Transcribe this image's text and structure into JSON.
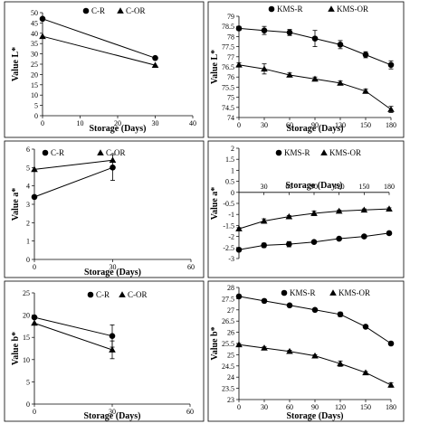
{
  "chart_data": [
    {
      "type": "line",
      "panel": "top-left",
      "xlabel": "Storage (Days)",
      "ylabel": "Value L*",
      "xlim": [
        0,
        40
      ],
      "ylim": [
        0,
        50
      ],
      "xticks": [
        0,
        10,
        20,
        30,
        40
      ],
      "yticks": [
        0,
        5,
        10,
        15,
        20,
        25,
        30,
        35,
        40,
        45,
        50
      ],
      "x_axis_at_bottom": true,
      "legend_placement": "top",
      "series": [
        {
          "name": "C-R",
          "marker": "circle",
          "x": [
            0,
            30
          ],
          "y": [
            47,
            28
          ],
          "err": [
            0,
            0
          ]
        },
        {
          "name": "C-OR",
          "marker": "triangle",
          "x": [
            0,
            30
          ],
          "y": [
            38.5,
            24.5
          ],
          "err": [
            0,
            0
          ]
        }
      ]
    },
    {
      "type": "line",
      "panel": "top-right",
      "xlabel": "Storage (Days)",
      "ylabel": "Value L*",
      "xlim": [
        0,
        180
      ],
      "ylim": [
        74,
        79
      ],
      "xticks": [
        0,
        30,
        60,
        90,
        120,
        150,
        180
      ],
      "yticks": [
        74,
        74.5,
        75,
        75.5,
        76,
        76.5,
        77,
        77.5,
        78,
        78.5,
        79
      ],
      "x_axis_at_bottom": true,
      "legend_placement": "top",
      "series": [
        {
          "name": "KMS-R",
          "marker": "circle",
          "x": [
            0,
            30,
            60,
            90,
            120,
            150,
            180
          ],
          "y": [
            78.4,
            78.3,
            78.2,
            77.9,
            77.6,
            77.1,
            76.6
          ],
          "err": [
            0.1,
            0.2,
            0.15,
            0.4,
            0.2,
            0.15,
            0.2
          ]
        },
        {
          "name": "KMS-OR",
          "marker": "triangle",
          "x": [
            0,
            30,
            60,
            90,
            120,
            150,
            180
          ],
          "y": [
            76.6,
            76.4,
            76.1,
            75.9,
            75.7,
            75.3,
            74.4
          ],
          "err": [
            0.1,
            0.25,
            0.1,
            0.1,
            0.1,
            0.1,
            0.15
          ]
        }
      ]
    },
    {
      "type": "line",
      "panel": "middle-left",
      "xlabel": "Storage (Days)",
      "ylabel": "Value a*",
      "xlim": [
        0,
        60
      ],
      "ylim": [
        0,
        6
      ],
      "xticks": [
        0,
        30,
        60
      ],
      "yticks": [
        0,
        1,
        2,
        3,
        4,
        5,
        6
      ],
      "x_axis_at_bottom": true,
      "legend_placement": "top",
      "series": [
        {
          "name": "C-R",
          "marker": "circle",
          "x": [
            0,
            30
          ],
          "y": [
            3.4,
            5.0
          ],
          "err": [
            0,
            0.7
          ]
        },
        {
          "name": "C-OR",
          "marker": "triangle",
          "x": [
            0,
            30
          ],
          "y": [
            4.9,
            5.4
          ],
          "err": [
            0,
            0
          ]
        }
      ]
    },
    {
      "type": "line",
      "panel": "middle-right",
      "xlabel": "Storage (Days)",
      "ylabel": "Value a*",
      "xlim": [
        0,
        180
      ],
      "ylim": [
        -3,
        2
      ],
      "xticks": [
        30,
        60,
        90,
        120,
        150,
        180
      ],
      "yticks": [
        -3,
        -2.5,
        -2,
        -1.5,
        -1,
        -0.5,
        0,
        0.5,
        1,
        1.5,
        2
      ],
      "x_axis_at_zero": true,
      "legend_placement": "top",
      "series": [
        {
          "name": "KMS-R",
          "marker": "circle",
          "x": [
            0,
            30,
            60,
            90,
            120,
            150,
            180
          ],
          "y": [
            -2.6,
            -2.4,
            -2.35,
            -2.25,
            -2.1,
            -2.0,
            -1.85
          ],
          "err": [
            0.05,
            0.1,
            0.12,
            0.05,
            0.05,
            0.05,
            0.05
          ]
        },
        {
          "name": "KMS-OR",
          "marker": "triangle",
          "x": [
            0,
            30,
            60,
            90,
            120,
            150,
            180
          ],
          "y": [
            -1.65,
            -1.3,
            -1.1,
            -0.95,
            -0.85,
            -0.8,
            -0.75
          ],
          "err": [
            0.05,
            0.1,
            0.05,
            0.1,
            0.05,
            0.05,
            0.05
          ]
        }
      ]
    },
    {
      "type": "line",
      "panel": "bottom-left",
      "xlabel": "Storage (Days)",
      "ylabel": "Value b*",
      "xlim": [
        0,
        60
      ],
      "ylim": [
        0,
        25
      ],
      "xticks": [
        0,
        30,
        60
      ],
      "yticks": [
        0,
        5,
        10,
        15,
        20,
        25
      ],
      "x_axis_at_bottom": true,
      "legend_placement": "top",
      "series": [
        {
          "name": "C-R",
          "marker": "circle",
          "x": [
            0,
            30
          ],
          "y": [
            19.5,
            15.3
          ],
          "err": [
            0,
            2.5
          ]
        },
        {
          "name": "C-OR",
          "marker": "triangle",
          "x": [
            0,
            30
          ],
          "y": [
            18.2,
            12.2
          ],
          "err": [
            0,
            2.0
          ]
        }
      ]
    },
    {
      "type": "line",
      "panel": "bottom-right",
      "xlabel": "Storage (Days)",
      "ylabel": "Value b*",
      "xlim": [
        0,
        180
      ],
      "ylim": [
        23,
        28
      ],
      "xticks": [
        0,
        30,
        60,
        90,
        120,
        150,
        180
      ],
      "yticks": [
        23,
        23.5,
        24,
        24.5,
        25,
        25.5,
        26,
        26.5,
        27,
        27.5,
        28
      ],
      "x_axis_at_bottom": true,
      "legend_placement": "top",
      "series": [
        {
          "name": "KMS-R",
          "marker": "circle",
          "x": [
            0,
            30,
            60,
            90,
            120,
            150,
            180
          ],
          "y": [
            27.6,
            27.4,
            27.2,
            27.0,
            26.8,
            26.25,
            25.5
          ],
          "err": [
            0.05,
            0.05,
            0.05,
            0.05,
            0.1,
            0.05,
            0.05
          ]
        },
        {
          "name": "KMS-OR",
          "marker": "triangle",
          "x": [
            0,
            30,
            60,
            90,
            120,
            150,
            180
          ],
          "y": [
            25.45,
            25.3,
            25.15,
            24.95,
            24.6,
            24.2,
            23.65
          ],
          "err": [
            0.05,
            0.05,
            0.05,
            0.05,
            0.12,
            0.05,
            0.1
          ]
        }
      ]
    }
  ]
}
